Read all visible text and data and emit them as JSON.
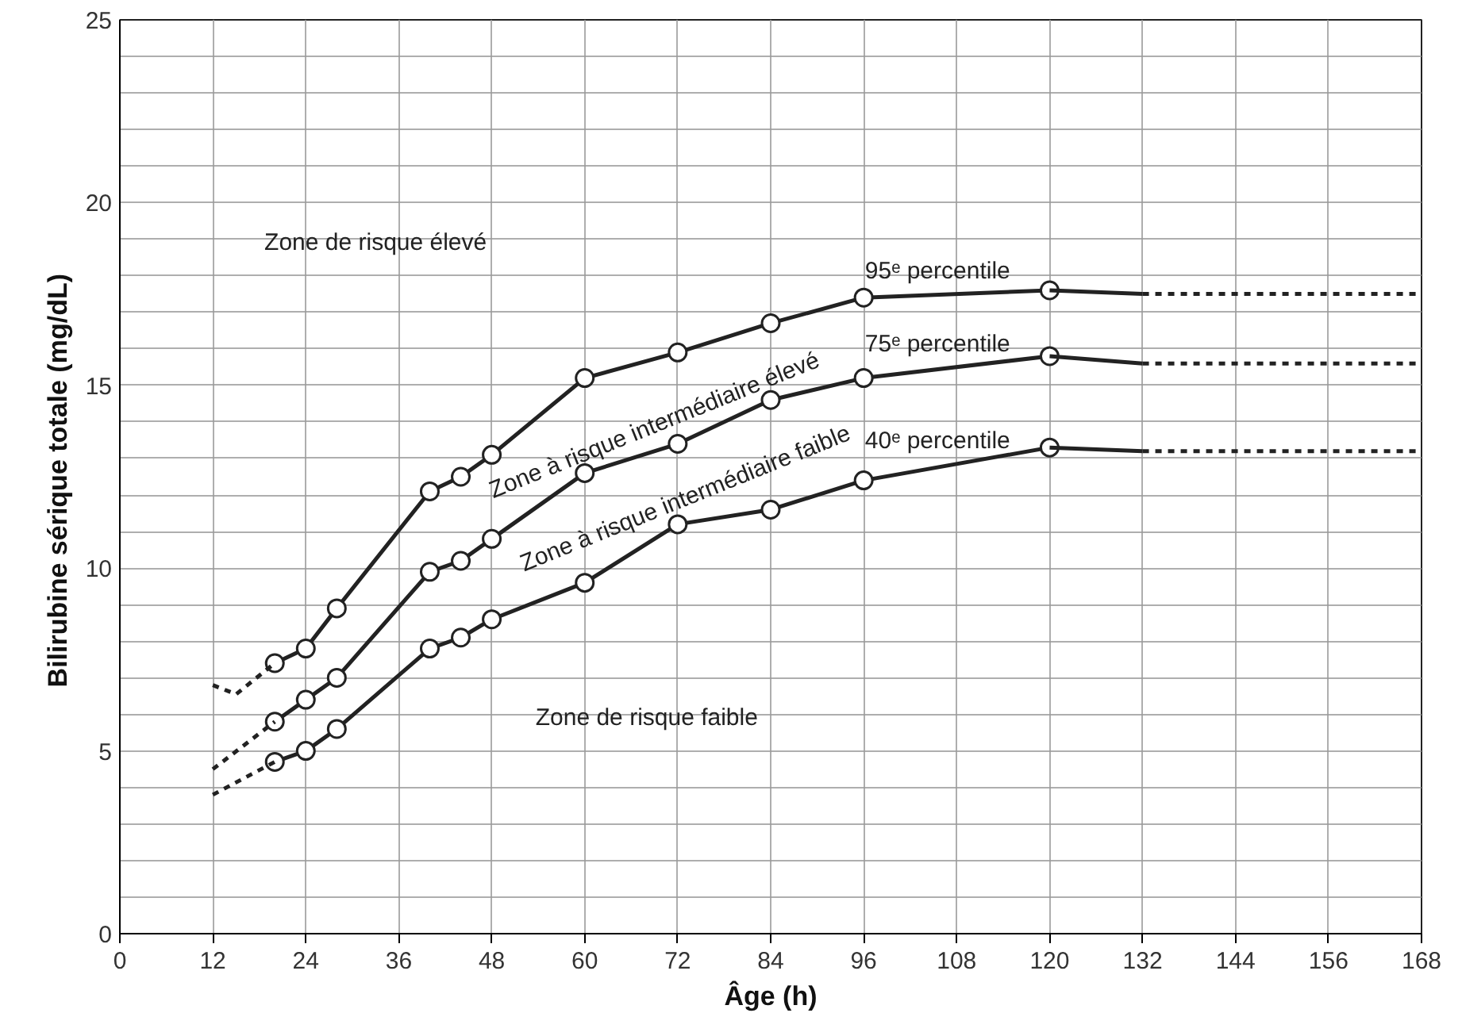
{
  "chart_data": {
    "type": "line",
    "xlabel": "Âge (h)",
    "ylabel": "Bilirubine sérique totale  (mg/dL)",
    "xlim": [
      0,
      168
    ],
    "xticks": [
      0,
      12,
      24,
      36,
      48,
      60,
      72,
      84,
      96,
      108,
      120,
      132,
      144,
      156,
      168
    ],
    "ylim": [
      0,
      25
    ],
    "yticks": [
      0,
      {
        "value": 1,
        "label": null
      },
      {
        "value": 2,
        "label": null
      },
      {
        "value": 3,
        "label": null
      },
      {
        "value": 4,
        "label": null
      },
      5,
      {
        "value": 6,
        "label": null
      },
      {
        "value": 7,
        "label": null
      },
      {
        "value": 8,
        "label": null
      },
      {
        "value": 9,
        "label": null
      },
      10,
      {
        "value": 11,
        "label": null
      },
      {
        "value": 12,
        "label": null
      },
      {
        "value": 13,
        "label": null
      },
      {
        "value": 14,
        "label": null
      },
      15,
      {
        "value": 16,
        "label": null
      },
      {
        "value": 17,
        "label": null
      },
      {
        "value": 18,
        "label": null
      },
      {
        "value": 19,
        "label": null
      },
      20,
      {
        "value": 21,
        "label": null
      },
      {
        "value": 22,
        "label": null
      },
      {
        "value": 23,
        "label": null
      },
      {
        "value": 24,
        "label": null
      },
      25
    ],
    "grid": true,
    "series": [
      {
        "name": "95ᵉ percentile",
        "color": "#222222",
        "marker": "circle",
        "line_style": "solid",
        "x": [
          20,
          24,
          28,
          40,
          44,
          48,
          60,
          72,
          84,
          96,
          120
        ],
        "values": [
          7.4,
          7.8,
          8.9,
          12.1,
          12.5,
          13.1,
          15.2,
          15.9,
          16.7,
          17.4,
          17.6
        ]
      },
      {
        "name": "75ᵉ percentile",
        "color": "#222222",
        "marker": "circle",
        "line_style": "solid",
        "x": [
          20,
          24,
          28,
          40,
          44,
          48,
          60,
          72,
          84,
          96,
          120
        ],
        "values": [
          5.8,
          6.4,
          7.0,
          9.9,
          10.2,
          10.8,
          12.6,
          13.4,
          14.6,
          15.2,
          15.8
        ]
      },
      {
        "name": "40ᵉ percentile",
        "color": "#222222",
        "marker": "circle",
        "line_style": "solid",
        "x": [
          20,
          24,
          28,
          40,
          44,
          48,
          60,
          72,
          84,
          96,
          120
        ],
        "values": [
          4.7,
          5.0,
          5.6,
          7.8,
          8.1,
          8.6,
          9.6,
          11.2,
          11.6,
          12.4,
          13.3
        ]
      },
      {
        "color": "#222222",
        "marker": "none",
        "line_style": "solid",
        "x": [
          120,
          132
        ],
        "values": [
          17.6,
          17.5
        ]
      },
      {
        "color": "#222222",
        "marker": "none",
        "line_style": "solid",
        "x": [
          120,
          132
        ],
        "values": [
          15.8,
          15.6
        ]
      },
      {
        "color": "#222222",
        "marker": "none",
        "line_style": "solid",
        "x": [
          120,
          132
        ],
        "values": [
          13.3,
          13.2
        ]
      },
      {
        "color": "#222222",
        "marker": "none",
        "line_style": "dashed",
        "x": [
          132,
          168
        ],
        "values": [
          17.5,
          17.5
        ]
      },
      {
        "color": "#222222",
        "marker": "none",
        "line_style": "dashed",
        "x": [
          132,
          168
        ],
        "values": [
          15.6,
          15.6
        ]
      },
      {
        "color": "#222222",
        "marker": "none",
        "line_style": "dashed",
        "x": [
          132,
          168
        ],
        "values": [
          13.2,
          13.2
        ]
      },
      {
        "color": "#222222",
        "marker": "none",
        "line_style": "dashed",
        "x": [
          12,
          15,
          20
        ],
        "values": [
          6.8,
          6.55,
          7.4
        ]
      },
      {
        "color": "#222222",
        "marker": "none",
        "line_style": "dashed",
        "x": [
          12,
          20
        ],
        "values": [
          4.5,
          5.8
        ]
      },
      {
        "color": "#222222",
        "marker": "none",
        "line_style": "dashed",
        "x": [
          12,
          20
        ],
        "values": [
          3.8,
          4.7
        ]
      }
    ],
    "annotations": [
      "Zone de risque élevé",
      "Zone à risque intermédiaire élevé",
      "Zone à risque intermédiaire faible",
      "Zone de risque faible"
    ]
  }
}
